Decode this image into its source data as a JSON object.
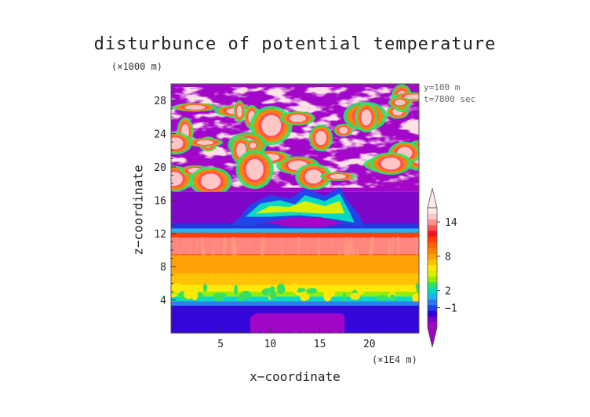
{
  "chart_data": {
    "type": "heatmap",
    "title": "disturbunce of potential temperature",
    "xlabel": "x−coordinate",
    "ylabel": "z−coordinate",
    "x_unit": "(×1E4 m)",
    "y_unit": "(×1000 m)",
    "annotations": [
      "y=100 m",
      "t=7800 sec"
    ],
    "xlim": [
      0,
      25
    ],
    "ylim": [
      0,
      30
    ],
    "xticks": [
      5,
      10,
      15,
      20
    ],
    "yticks": [
      4,
      8,
      12,
      16,
      20,
      24,
      28
    ],
    "colorbar": {
      "tick_labels": [
        "14",
        "8",
        "2",
        "−1"
      ],
      "tick_values": [
        14,
        8,
        2,
        -1
      ],
      "levels": [
        -4,
        -3,
        -2,
        -1,
        0,
        1,
        2,
        3,
        4,
        5,
        6,
        7,
        8,
        9,
        10,
        11,
        12,
        13,
        14,
        15,
        16
      ],
      "colors": [
        "#a000c8",
        "#7a00c8",
        "#3000d8",
        "#1c40e8",
        "#2a78f0",
        "#20b0f0",
        "#00d8c0",
        "#30e060",
        "#90ee00",
        "#d8f000",
        "#ffe800",
        "#ffc000",
        "#ffa000",
        "#ff8000",
        "#ff6000",
        "#ff3a00",
        "#f01820",
        "#ff5050",
        "#ff9090",
        "#ffc4c4",
        "#ffe8e8"
      ]
    },
    "regions": [
      {
        "desc": "upper-right purple background",
        "x": [
          0,
          25
        ],
        "z": [
          17,
          30
        ],
        "value": -4
      },
      {
        "desc": "stratospheric mottled patches",
        "x": [
          0,
          25
        ],
        "z": [
          17,
          29.5
        ],
        "value": 14
      },
      {
        "desc": "tropopause cold band",
        "x": [
          0,
          25
        ],
        "z": [
          12,
          17
        ],
        "value": -3
      },
      {
        "desc": "anvil outflow",
        "x": [
          6,
          19
        ],
        "z": [
          12.5,
          17.5
        ],
        "value": 2
      },
      {
        "desc": "upper warm layer",
        "x": [
          0,
          25
        ],
        "z": [
          9,
          12
        ],
        "value": 12
      },
      {
        "desc": "mid troposphere warm",
        "x": [
          0,
          25
        ],
        "z": [
          5,
          9
        ],
        "value": 9
      },
      {
        "desc": "transition green/cyan",
        "x": [
          0,
          25
        ],
        "z": [
          3.8,
          5
        ],
        "value": 1
      },
      {
        "desc": "boundary layer",
        "x": [
          0,
          25
        ],
        "z": [
          0,
          3.8
        ],
        "value": -2
      },
      {
        "desc": "cold pool",
        "x": [
          8,
          17.5
        ],
        "z": [
          0,
          2.4
        ],
        "value": -4
      }
    ]
  }
}
